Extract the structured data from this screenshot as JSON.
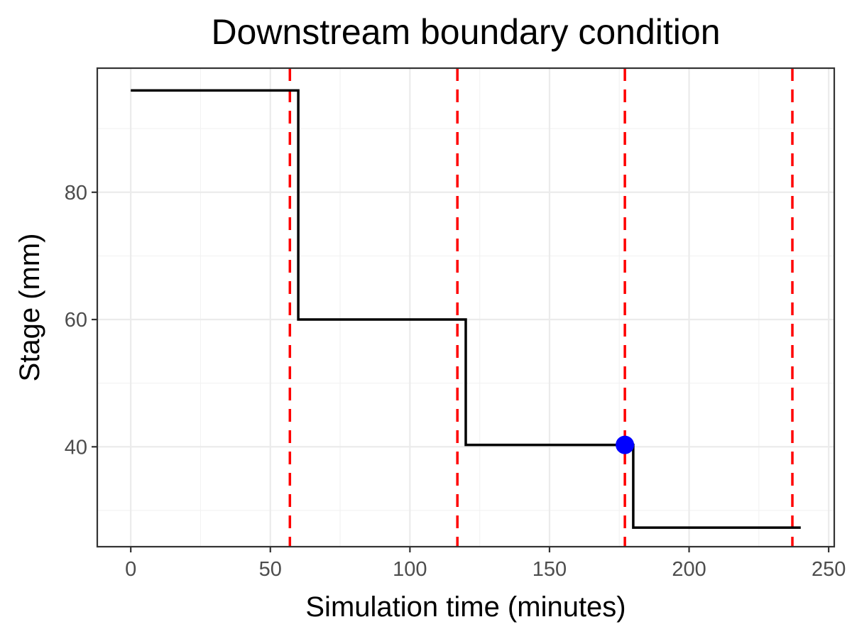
{
  "chart_data": {
    "type": "line",
    "title": "Downstream boundary condition",
    "xlabel": "Simulation time (minutes)",
    "ylabel": "Stage (mm)",
    "xlim": [
      -12,
      252
    ],
    "ylim": [
      24.3,
      99.5
    ],
    "x_ticks": [
      0,
      50,
      100,
      150,
      200,
      250
    ],
    "x_tick_labels": [
      "0",
      "50",
      "100",
      "150",
      "200",
      "250"
    ],
    "y_ticks": [
      40,
      60,
      80
    ],
    "y_tick_labels": [
      "40",
      "60",
      "80"
    ],
    "x_minor_ticks": [
      25,
      75,
      125,
      175,
      225
    ],
    "y_minor_ticks": [
      30,
      50,
      70,
      90
    ],
    "grid": true,
    "series": [
      {
        "style": "step",
        "color": "#000000",
        "x": [
          0,
          60,
          60,
          120,
          120,
          180,
          180,
          240
        ],
        "y": [
          96,
          96,
          60,
          60,
          40.3,
          40.3,
          27.3,
          27.3
        ]
      }
    ],
    "vlines": {
      "color": "#ff0000",
      "style": "dashed",
      "x": [
        57,
        117,
        177,
        237
      ]
    },
    "points": [
      {
        "x": 177,
        "y": 40.3,
        "color": "#0000ff"
      }
    ]
  }
}
